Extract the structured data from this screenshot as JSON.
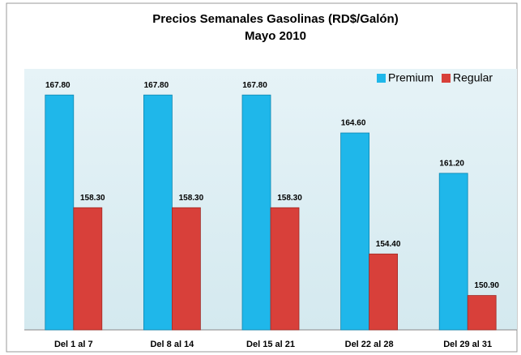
{
  "chart_data": {
    "type": "bar",
    "title": "Precios Semanales Gasolinas   (RD$/Galón)",
    "subtitle": "Mayo 2010",
    "categories": [
      "Del 1 al 7",
      "Del 8 al 14",
      "Del 15 al 21",
      "Del 22 al 28",
      "Del 29 al 31"
    ],
    "series": [
      {
        "name": "Premium",
        "color": "#1fb7ea",
        "values": [
          167.8,
          167.8,
          167.8,
          164.6,
          161.2
        ],
        "value_labels": [
          "167.80",
          "167.80",
          "167.80",
          "164.60",
          "161.20"
        ]
      },
      {
        "name": "Regular",
        "color": "#d8403a",
        "values": [
          158.3,
          158.3,
          158.3,
          154.4,
          150.9
        ],
        "value_labels": [
          "158.30",
          "158.30",
          "158.30",
          "154.40",
          "150.90"
        ]
      }
    ],
    "ylim": [
      148,
      170
    ],
    "legend": "top-right"
  }
}
